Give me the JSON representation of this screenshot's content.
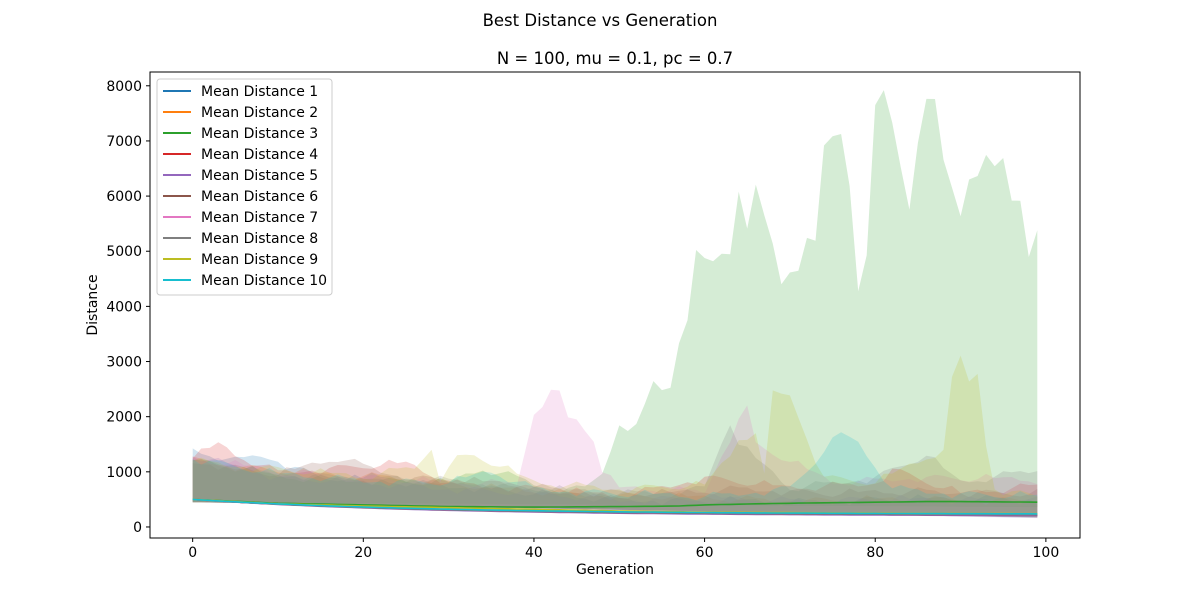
{
  "chart_data": {
    "type": "line",
    "suptitle": "Best Distance vs Generation",
    "title": "N = 100, mu = 0.1, pc = 0.7",
    "xlabel": "Generation",
    "ylabel": "Distance",
    "xlim": [
      -5,
      104
    ],
    "ylim": [
      -200,
      8250
    ],
    "xticks": [
      0,
      20,
      40,
      60,
      80,
      100
    ],
    "yticks": [
      0,
      1000,
      2000,
      3000,
      4000,
      5000,
      6000,
      7000,
      8000
    ],
    "legend_position": "upper-left",
    "band_note": "shaded areas show min-max spread per run",
    "series": [
      {
        "name": "Mean Distance 1",
        "color": "#1f77b4",
        "start": 500,
        "end": 210,
        "band_upper": [
          [
            0,
            1380
          ],
          [
            5,
            1200
          ],
          [
            8,
            1320
          ],
          [
            15,
            900
          ],
          [
            25,
            800
          ],
          [
            35,
            700
          ],
          [
            40,
            600
          ],
          [
            50,
            500
          ],
          [
            60,
            480
          ],
          [
            70,
            450
          ],
          [
            80,
            500
          ],
          [
            90,
            500
          ],
          [
            99,
            520
          ]
        ]
      },
      {
        "name": "Mean Distance 2",
        "color": "#ff7f0e",
        "start": 500,
        "end": 230,
        "band_upper": [
          [
            0,
            1250
          ],
          [
            5,
            1100
          ],
          [
            15,
            950
          ],
          [
            25,
            900
          ],
          [
            35,
            700
          ],
          [
            45,
            600
          ],
          [
            55,
            550
          ],
          [
            65,
            500
          ],
          [
            75,
            480
          ],
          [
            85,
            500
          ],
          [
            99,
            480
          ]
        ]
      },
      {
        "name": "Mean Distance 3",
        "color": "#2ca02c",
        "start": 500,
        "end": 450,
        "mean_points": [
          [
            0,
            500
          ],
          [
            10,
            430
          ],
          [
            20,
            400
          ],
          [
            30,
            370
          ],
          [
            40,
            360
          ],
          [
            50,
            370
          ],
          [
            57,
            380
          ],
          [
            60,
            400
          ],
          [
            66,
            420
          ],
          [
            70,
            430
          ],
          [
            80,
            450
          ],
          [
            86,
            460
          ],
          [
            90,
            460
          ],
          [
            99,
            450
          ]
        ],
        "band_upper": [
          [
            0,
            1200
          ],
          [
            5,
            1100
          ],
          [
            10,
            900
          ],
          [
            20,
            850
          ],
          [
            30,
            800
          ],
          [
            34,
            1050
          ],
          [
            38,
            900
          ],
          [
            42,
            700
          ],
          [
            46,
            700
          ],
          [
            48,
            1000
          ],
          [
            50,
            1850
          ],
          [
            51,
            1650
          ],
          [
            52,
            1850
          ],
          [
            53,
            2200
          ],
          [
            54,
            2600
          ],
          [
            55,
            2500
          ],
          [
            56,
            2550
          ],
          [
            57,
            3400
          ],
          [
            58,
            3750
          ],
          [
            59,
            4950
          ],
          [
            60,
            4850
          ],
          [
            61,
            4800
          ],
          [
            62,
            5000
          ],
          [
            63,
            4980
          ],
          [
            64,
            6100
          ],
          [
            65,
            5500
          ],
          [
            66,
            6200
          ],
          [
            67,
            5600
          ],
          [
            68,
            5100
          ],
          [
            69,
            4400
          ],
          [
            70,
            4650
          ],
          [
            71,
            4700
          ],
          [
            72,
            5250
          ],
          [
            73,
            5100
          ],
          [
            74,
            6900
          ],
          [
            75,
            7050
          ],
          [
            76,
            7080
          ],
          [
            77,
            6200
          ],
          [
            78,
            4300
          ],
          [
            79,
            5000
          ],
          [
            80,
            7650
          ],
          [
            81,
            7850
          ],
          [
            82,
            7300
          ],
          [
            83,
            6500
          ],
          [
            84,
            5800
          ],
          [
            85,
            7000
          ],
          [
            86,
            7780
          ],
          [
            87,
            7850
          ],
          [
            88,
            6650
          ],
          [
            89,
            6100
          ],
          [
            90,
            5600
          ],
          [
            91,
            6300
          ],
          [
            92,
            6400
          ],
          [
            93,
            6800
          ],
          [
            94,
            6550
          ],
          [
            95,
            6600
          ],
          [
            96,
            5900
          ],
          [
            97,
            5880
          ],
          [
            98,
            4850
          ],
          [
            99,
            5400
          ]
        ]
      },
      {
        "name": "Mean Distance 4",
        "color": "#d62728",
        "start": 500,
        "end": 220,
        "band_upper": [
          [
            0,
            1250
          ],
          [
            3,
            1500
          ],
          [
            5,
            1300
          ],
          [
            10,
            1000
          ],
          [
            20,
            1100
          ],
          [
            25,
            1150
          ],
          [
            30,
            800
          ],
          [
            40,
            700
          ],
          [
            50,
            550
          ],
          [
            60,
            900
          ],
          [
            70,
            700
          ],
          [
            80,
            800
          ],
          [
            82,
            1050
          ],
          [
            90,
            600
          ],
          [
            99,
            750
          ]
        ]
      },
      {
        "name": "Mean Distance 5",
        "color": "#9467bd",
        "start": 500,
        "end": 200,
        "band_upper": [
          [
            0,
            1300
          ],
          [
            10,
            900
          ],
          [
            20,
            800
          ],
          [
            30,
            700
          ],
          [
            40,
            600
          ],
          [
            50,
            500
          ],
          [
            60,
            520
          ],
          [
            70,
            480
          ],
          [
            80,
            500
          ],
          [
            90,
            480
          ],
          [
            99,
            500
          ]
        ]
      },
      {
        "name": "Mean Distance 6",
        "color": "#8c564b",
        "start": 500,
        "end": 215,
        "band_upper": [
          [
            0,
            1200
          ],
          [
            10,
            950
          ],
          [
            17,
            1250
          ],
          [
            25,
            900
          ],
          [
            35,
            800
          ],
          [
            45,
            650
          ],
          [
            55,
            600
          ],
          [
            65,
            700
          ],
          [
            75,
            600
          ],
          [
            85,
            650
          ],
          [
            99,
            600
          ]
        ]
      },
      {
        "name": "Mean Distance 7",
        "color": "#e377c2",
        "start": 500,
        "end": 225,
        "band_upper": [
          [
            0,
            1250
          ],
          [
            10,
            1000
          ],
          [
            20,
            900
          ],
          [
            30,
            800
          ],
          [
            38,
            800
          ],
          [
            40,
            2050
          ],
          [
            42,
            2480
          ],
          [
            43,
            2420
          ],
          [
            44,
            1950
          ],
          [
            45,
            1950
          ],
          [
            47,
            1600
          ],
          [
            48,
            1000
          ],
          [
            50,
            700
          ],
          [
            60,
            650
          ],
          [
            64,
            1950
          ],
          [
            65,
            2150
          ],
          [
            66,
            1500
          ],
          [
            75,
            800
          ],
          [
            85,
            900
          ],
          [
            99,
            850
          ]
        ]
      },
      {
        "name": "Mean Distance 8",
        "color": "#7f7f7f",
        "start": 500,
        "end": 220,
        "band_upper": [
          [
            0,
            1200
          ],
          [
            10,
            950
          ],
          [
            20,
            900
          ],
          [
            30,
            850
          ],
          [
            40,
            700
          ],
          [
            50,
            600
          ],
          [
            60,
            700
          ],
          [
            62,
            1550
          ],
          [
            63,
            1900
          ],
          [
            64,
            1500
          ],
          [
            70,
            700
          ],
          [
            80,
            900
          ],
          [
            86,
            1300
          ],
          [
            90,
            800
          ],
          [
            99,
            1050
          ]
        ]
      },
      {
        "name": "Mean Distance 9",
        "color": "#bcbd22",
        "start": 500,
        "end": 240,
        "mean_points": [
          [
            0,
            500
          ],
          [
            10,
            420
          ],
          [
            20,
            380
          ],
          [
            30,
            350
          ],
          [
            40,
            320
          ],
          [
            50,
            290
          ],
          [
            60,
            270
          ],
          [
            70,
            260
          ],
          [
            80,
            250
          ],
          [
            90,
            245
          ],
          [
            99,
            240
          ]
        ],
        "band_upper": [
          [
            0,
            1200
          ],
          [
            10,
            1050
          ],
          [
            20,
            900
          ],
          [
            26,
            1100
          ],
          [
            28,
            1420
          ],
          [
            29,
            900
          ],
          [
            31,
            1250
          ],
          [
            33,
            1300
          ],
          [
            36,
            1100
          ],
          [
            40,
            800
          ],
          [
            50,
            700
          ],
          [
            60,
            750
          ],
          [
            63,
            1300
          ],
          [
            64,
            1600
          ],
          [
            66,
            1700
          ],
          [
            67,
            900
          ],
          [
            68,
            2450
          ],
          [
            69,
            2400
          ],
          [
            70,
            2430
          ],
          [
            72,
            1600
          ],
          [
            74,
            900
          ],
          [
            80,
            800
          ],
          [
            88,
            1400
          ],
          [
            89,
            2650
          ],
          [
            90,
            3080
          ],
          [
            91,
            2620
          ],
          [
            92,
            2820
          ],
          [
            93,
            1500
          ],
          [
            94,
            700
          ],
          [
            99,
            550
          ]
        ]
      },
      {
        "name": "Mean Distance 10",
        "color": "#17becf",
        "start": 500,
        "end": 230,
        "band_upper": [
          [
            0,
            1250
          ],
          [
            10,
            950
          ],
          [
            20,
            850
          ],
          [
            30,
            800
          ],
          [
            35,
            1000
          ],
          [
            40,
            700
          ],
          [
            50,
            600
          ],
          [
            60,
            550
          ],
          [
            70,
            700
          ],
          [
            76,
            1700
          ],
          [
            78,
            1500
          ],
          [
            80,
            1100
          ],
          [
            82,
            700
          ],
          [
            90,
            600
          ],
          [
            99,
            550
          ]
        ]
      }
    ]
  }
}
